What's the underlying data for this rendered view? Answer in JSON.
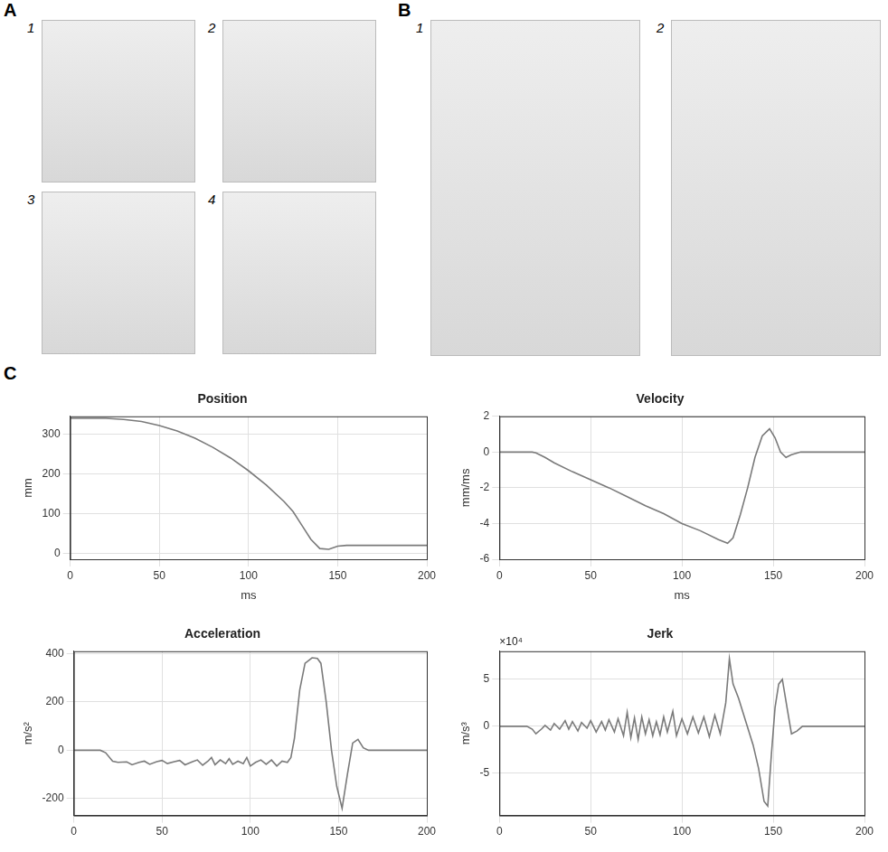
{
  "figure": {
    "panels": [
      {
        "label": "A",
        "photos": [
          "1",
          "2",
          "3",
          "4"
        ]
      },
      {
        "label": "B",
        "photos": [
          "1",
          "2"
        ]
      },
      {
        "label": "C"
      }
    ]
  },
  "chart_data": [
    {
      "type": "line",
      "title": "Position",
      "x_label": "ms",
      "y_label": "mm",
      "x": [
        0,
        20,
        30,
        40,
        50,
        60,
        70,
        80,
        90,
        100,
        110,
        120,
        125,
        130,
        135,
        140,
        145,
        150,
        155,
        160,
        200
      ],
      "series": [
        {
          "color": "#7a7a7a",
          "values": [
            340,
            340,
            337,
            332,
            322,
            308,
            290,
            267,
            240,
            208,
            172,
            130,
            105,
            70,
            35,
            12,
            10,
            18,
            20,
            20,
            20
          ]
        }
      ],
      "xlim": [
        0,
        200
      ],
      "xticks": [
        0,
        50,
        100,
        150,
        200
      ],
      "ylim": [
        -15,
        345
      ],
      "yticks": [
        0,
        100,
        200,
        300
      ],
      "grid": true
    },
    {
      "type": "line",
      "title": "Velocity",
      "x_label": "ms",
      "y_label": "mm/ms",
      "x": [
        0,
        18,
        20,
        25,
        30,
        40,
        50,
        60,
        70,
        80,
        90,
        100,
        110,
        120,
        125,
        128,
        132,
        136,
        140,
        144,
        148,
        151,
        154,
        157,
        160,
        165,
        200
      ],
      "series": [
        {
          "color": "#7a7a7a",
          "values": [
            0,
            0,
            -0.05,
            -0.3,
            -0.6,
            -1.1,
            -1.55,
            -2.0,
            -2.5,
            -3.0,
            -3.45,
            -4.0,
            -4.4,
            -4.9,
            -5.1,
            -4.8,
            -3.5,
            -2.0,
            -0.3,
            0.9,
            1.3,
            0.8,
            0,
            -0.3,
            -0.15,
            0,
            0
          ]
        }
      ],
      "xlim": [
        0,
        200
      ],
      "xticks": [
        0,
        50,
        100,
        150,
        200
      ],
      "ylim": [
        -6,
        2
      ],
      "yticks": [
        -6,
        -4,
        -2,
        0,
        2
      ],
      "grid": true
    },
    {
      "type": "line",
      "title": "Acceleration",
      "y_label": "m/s²",
      "x": [
        0,
        15,
        18,
        22,
        25,
        30,
        33,
        37,
        40,
        43,
        47,
        50,
        53,
        57,
        60,
        63,
        67,
        70,
        73,
        76,
        78,
        80,
        83,
        86,
        88,
        90,
        93,
        96,
        98,
        100,
        103,
        106,
        109,
        112,
        115,
        118,
        121,
        123,
        125,
        128,
        131,
        135,
        138,
        140,
        143,
        146,
        149,
        152,
        155,
        158,
        161,
        164,
        167,
        200
      ],
      "series": [
        {
          "color": "#7a7a7a",
          "values": [
            0,
            0,
            -10,
            -45,
            -50,
            -48,
            -60,
            -50,
            -45,
            -58,
            -47,
            -42,
            -55,
            -47,
            -42,
            -60,
            -48,
            -40,
            -62,
            -45,
            -30,
            -60,
            -40,
            -55,
            -35,
            -58,
            -45,
            -55,
            -30,
            -65,
            -50,
            -40,
            -58,
            -40,
            -65,
            -45,
            -50,
            -30,
            50,
            250,
            360,
            383,
            380,
            360,
            200,
            0,
            -150,
            -240,
            -100,
            30,
            45,
            10,
            0,
            0
          ]
        }
      ],
      "xlim": [
        0,
        200
      ],
      "xticks": [
        0,
        50,
        100,
        150,
        200
      ],
      "ylim": [
        -270,
        410
      ],
      "yticks": [
        -200,
        0,
        200,
        400
      ],
      "grid": true
    },
    {
      "type": "line",
      "title": "Jerk",
      "y_label": "m/s³",
      "annotations": [
        "×10⁴"
      ],
      "x": [
        0,
        15,
        18,
        20,
        23,
        25,
        28,
        30,
        33,
        36,
        38,
        40,
        43,
        45,
        48,
        50,
        53,
        56,
        58,
        60,
        63,
        65,
        68,
        70,
        72,
        74,
        76,
        78,
        80,
        82,
        84,
        86,
        88,
        90,
        92,
        95,
        97,
        100,
        103,
        106,
        109,
        112,
        115,
        118,
        121,
        124,
        126,
        128,
        131,
        135,
        139,
        142,
        145,
        147,
        149,
        151,
        153,
        155,
        158,
        160,
        163,
        166,
        200
      ],
      "series": [
        {
          "color": "#7a7a7a",
          "values": [
            0,
            0,
            -0.3,
            -0.8,
            -0.3,
            0.1,
            -0.4,
            0.3,
            -0.3,
            0.6,
            -0.3,
            0.5,
            -0.5,
            0.4,
            -0.2,
            0.6,
            -0.6,
            0.5,
            -0.4,
            0.7,
            -0.6,
            0.8,
            -1.0,
            1.5,
            -1.2,
            0.9,
            -1.4,
            1.0,
            -0.8,
            0.7,
            -1.0,
            0.5,
            -0.9,
            1.0,
            -0.6,
            1.6,
            -1.0,
            0.8,
            -0.8,
            1.0,
            -0.7,
            1.0,
            -1.1,
            1.2,
            -0.8,
            2.5,
            7.2,
            4.5,
            3.0,
            0.5,
            -2.0,
            -4.5,
            -8.0,
            -8.5,
            -3.0,
            2.0,
            4.5,
            5.0,
            1.5,
            -0.8,
            -0.5,
            0,
            0
          ]
        }
      ],
      "xlim": [
        0,
        200
      ],
      "xticks": [
        0,
        50,
        100,
        150,
        200
      ],
      "ylim": [
        -9.5,
        8
      ],
      "yticks": [
        -5,
        0,
        5
      ],
      "grid": true
    }
  ]
}
